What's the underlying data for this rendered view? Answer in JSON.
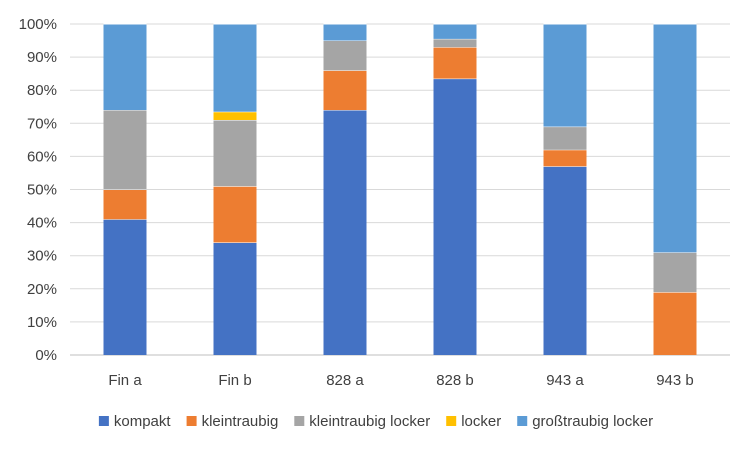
{
  "chart_data": {
    "type": "bar",
    "stacked": true,
    "percent": true,
    "categories": [
      "Fin a",
      "Fin b",
      "828 a",
      "828 b",
      "943 a",
      "943 b"
    ],
    "series": [
      {
        "name": "kompakt",
        "color": "#4472C4",
        "values": [
          41,
          34,
          74,
          83.5,
          57,
          0
        ]
      },
      {
        "name": "kleintraubig",
        "color": "#ED7D31",
        "values": [
          9,
          17,
          12,
          9.5,
          5,
          19
        ]
      },
      {
        "name": "kleintraubig locker",
        "color": "#A5A5A5",
        "values": [
          24,
          20,
          9,
          2.5,
          7,
          12
        ]
      },
      {
        "name": "locker",
        "color": "#FFC000",
        "values": [
          0,
          2.5,
          0,
          0,
          0,
          0
        ]
      },
      {
        "name": "großtraubig locker",
        "color": "#5B9BD5",
        "values": [
          26,
          26.5,
          5,
          4.5,
          31,
          69
        ]
      }
    ],
    "y_ticks": [
      "0%",
      "10%",
      "20%",
      "30%",
      "40%",
      "50%",
      "60%",
      "70%",
      "80%",
      "90%",
      "100%"
    ],
    "ylim": [
      0,
      100
    ],
    "grid": true,
    "legend_position": "bottom",
    "title": "",
    "xlabel": "",
    "ylabel": ""
  }
}
